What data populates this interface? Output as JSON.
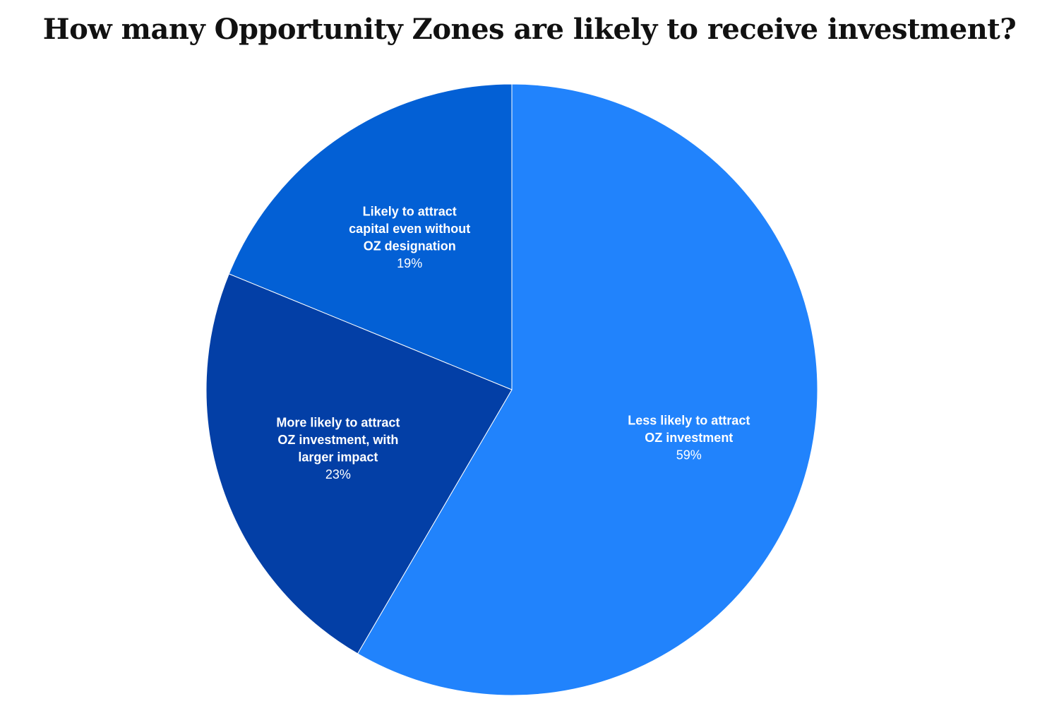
{
  "chart_data": {
    "type": "pie",
    "title": "How many Opportunity Zones are likely to receive investment?",
    "slices": [
      {
        "label": "Less likely to attract OZ investment",
        "label_lines": [
          "Less likely to attract",
          "OZ investment"
        ],
        "value": 59,
        "value_label": "59%",
        "color": "#2183fc"
      },
      {
        "label": "More likely to attract OZ investment, with larger impact",
        "label_lines": [
          "More likely to attract",
          "OZ investment, with",
          "larger impact"
        ],
        "value": 23,
        "value_label": "23%",
        "color": "#033fa6"
      },
      {
        "label": "Likely to attract capital even without OZ designation",
        "label_lines": [
          "Likely to attract",
          "capital even without",
          "OZ designation"
        ],
        "value": 19,
        "value_label": "19%",
        "color": "#0360d5"
      }
    ],
    "start": "12 o'clock",
    "direction": "clockwise",
    "legend": "none",
    "data_labels": "inside slices"
  }
}
